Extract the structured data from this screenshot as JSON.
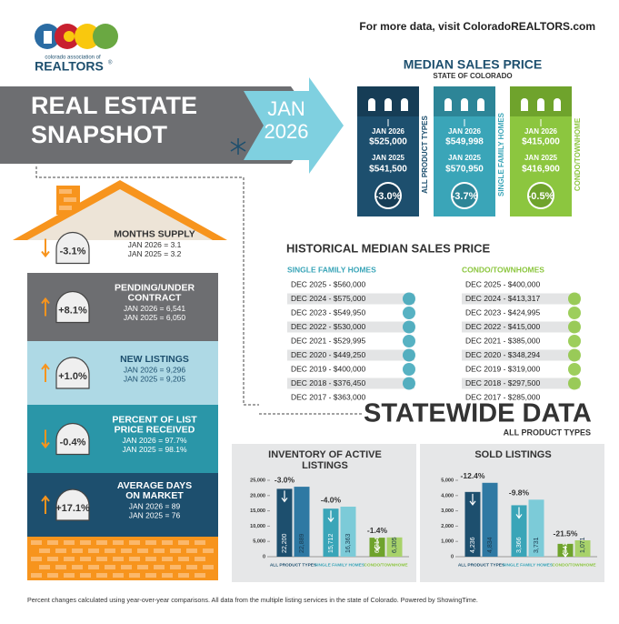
{
  "header": {
    "association": "colorado association of",
    "brand": "REALTORS",
    "registered": "®",
    "more_data": "For more data, visit ColoradoREALTORS.com"
  },
  "banner": {
    "title_line1": "REAL ESTATE",
    "title_line2": "SNAPSHOT",
    "month": "JAN",
    "year": "2026"
  },
  "median_sales_price": {
    "title": "MEDIAN SALES PRICE",
    "subtitle": "STATE OF COLORADO",
    "houses": [
      {
        "label": "ALL PRODUCT TYPES",
        "current_period": "JAN 2026",
        "current_price": "$525,000",
        "prior_period": "JAN 2025",
        "prior_price": "$541,500",
        "change": "-3.0%",
        "color": "#1d4f6e"
      },
      {
        "label": "SINGLE FAMILY HOMES",
        "current_period": "JAN 2026",
        "current_price": "$549,998",
        "prior_period": "JAN 2025",
        "prior_price": "$570,950",
        "change": "-3.7%",
        "color": "#3aa5b8"
      },
      {
        "label": "CONDO/TOWNHOME",
        "current_period": "JAN 2026",
        "current_price": "$415,000",
        "prior_period": "JAN 2025",
        "prior_price": "$416,900",
        "change": "-0.5%",
        "color": "#8cc63f"
      }
    ]
  },
  "house_stats": [
    {
      "change": "-3.1%",
      "title_lines": [
        "MONTHS SUPPLY"
      ],
      "current": "JAN 2026 = 3.1",
      "prior": "JAN 2025 = 3.2"
    },
    {
      "change": "+8.1%",
      "title_lines": [
        "PENDING/UNDER",
        "CONTRACT"
      ],
      "current": "JAN 2026 = 6,541",
      "prior": "JAN 2025 = 6,050"
    },
    {
      "change": "+1.0%",
      "title_lines": [
        "NEW LISTINGS"
      ],
      "current": "JAN 2026 = 9,296",
      "prior": "JAN 2025 = 9,205"
    },
    {
      "change": "-0.4%",
      "title_lines": [
        "PERCENT OF LIST",
        "PRICE RECEIVED"
      ],
      "current": "JAN 2026 = 97.7%",
      "prior": "JAN 2025 = 98.1%"
    },
    {
      "change": "+17.1%",
      "title_lines": [
        "AVERAGE DAYS",
        "ON MARKET"
      ],
      "current": "JAN 2026 = 89",
      "prior": "JAN 2025 = 76"
    }
  ],
  "historical": {
    "title": "HISTORICAL MEDIAN SALES PRICE",
    "columns": [
      {
        "heading": "SINGLE FAMILY HOMES",
        "color": "#3aa5b8",
        "rows": [
          "DEC 2025 - $560,000",
          "DEC 2024 - $575,000",
          "DEC 2023 - $549,950",
          "DEC 2022 - $530,000",
          "DEC 2021 - $529,995",
          "DEC 2020 - $449,250",
          "DEC 2019 - $400,000",
          "DEC 2018 - $376,450",
          "DEC 2017 - $363,000"
        ]
      },
      {
        "heading": "CONDO/TOWNHOMES",
        "color": "#8cc63f",
        "rows": [
          "DEC 2025 - $400,000",
          "DEC 2024 - $413,317",
          "DEC 2023 - $424,995",
          "DEC 2022 - $415,000",
          "DEC 2021 - $385,000",
          "DEC 2020 - $348,294",
          "DEC 2019 - $319,000",
          "DEC 2018 - $297,500",
          "DEC 2017 - $285,000"
        ]
      }
    ]
  },
  "statewide": {
    "title": "STATEWIDE DATA",
    "subtitle": "ALL PRODUCT TYPES"
  },
  "chart_data": [
    {
      "type": "bar",
      "title": "INVENTORY OF ACTIVE LISTINGS",
      "categories": [
        "ALL PRODUCT TYPES",
        "SINGLE FAMILY HOMES",
        "CONDO/TOWNHOME"
      ],
      "category_colors": [
        "#1d4f6e",
        "#3aa5b8",
        "#8cc63f"
      ],
      "changes": [
        "-3.0%",
        "-4.0%",
        "-1.4%"
      ],
      "series": [
        {
          "values": [
            22200,
            15712,
            6214
          ],
          "value_labels": [
            "22,200",
            "15,712",
            "6,214"
          ],
          "colors": [
            "#1d4f6e",
            "#3aa5b8",
            "#6fa32c"
          ]
        },
        {
          "values": [
            22889,
            16363,
            6305
          ],
          "value_labels": [
            "22,889",
            "16,363",
            "6,305"
          ],
          "colors": [
            "#2f79a3",
            "#7ccbd8",
            "#a8d26a"
          ]
        }
      ],
      "ylim": [
        0,
        25000
      ],
      "yticks": [
        0,
        {
          "value": 5000,
          "label": "5,000"
        },
        {
          "value": 10000,
          "label": "10,000"
        },
        {
          "value": 15000,
          "label": "15,000"
        },
        {
          "value": 20000,
          "label": "20,000"
        },
        {
          "value": 25000,
          "label": "25,000"
        }
      ]
    },
    {
      "type": "bar",
      "title": "SOLD LISTINGS",
      "categories": [
        "ALL PRODUCT TYPES",
        "SINGLE FAMILY HOMES",
        "CONDO/TOWNHOME"
      ],
      "category_colors": [
        "#1d4f6e",
        "#3aa5b8",
        "#8cc63f"
      ],
      "changes": [
        "-12.4%",
        "-9.8%",
        "-21.5%"
      ],
      "series": [
        {
          "values": [
            4236,
            3366,
            841
          ],
          "value_labels": [
            "4,236",
            "3,366",
            "841"
          ],
          "colors": [
            "#1d4f6e",
            "#3aa5b8",
            "#6fa32c"
          ]
        },
        {
          "values": [
            4834,
            3731,
            1071
          ],
          "value_labels": [
            "4,834",
            "3,731",
            "1,071"
          ],
          "colors": [
            "#2f79a3",
            "#7ccbd8",
            "#a8d26a"
          ]
        }
      ],
      "ylim": [
        0,
        5000
      ],
      "yticks": [
        0,
        {
          "value": 1000,
          "label": "1,000"
        },
        {
          "value": 2000,
          "label": "2,000"
        },
        {
          "value": 3000,
          "label": "3,000"
        },
        {
          "value": 4000,
          "label": "4,000"
        },
        {
          "value": 5000,
          "label": "5,000"
        }
      ]
    }
  ],
  "footer": "Percent changes calculated using year-over-year comparisons. All data from the multiple listing services in the state of Colorado. Powered by ShowingTime."
}
